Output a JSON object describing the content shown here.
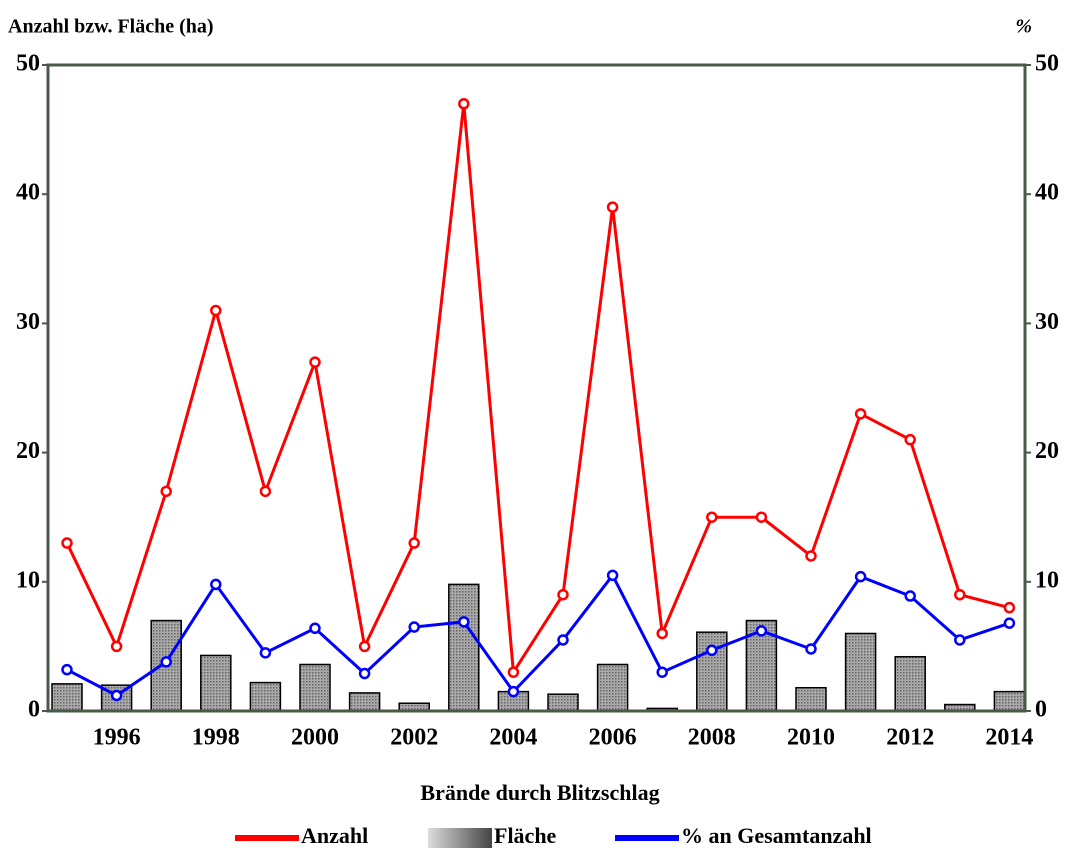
{
  "chart_data": {
    "type": "bar-line",
    "ylabel": "Anzahl bzw. Fläche (ha)",
    "y2label": "%",
    "xlabel": "Brände durch Blitzschlag",
    "categories": [
      null,
      "1996",
      null,
      "1998",
      null,
      "2000",
      null,
      "2002",
      null,
      "2004",
      null,
      "2006",
      null,
      "2008",
      null,
      "2010",
      null,
      "2012",
      null,
      "2014"
    ],
    "series": [
      {
        "name": "Anzahl",
        "type": "line",
        "color": "#ff0000",
        "values": [
          13,
          5,
          17,
          31,
          17,
          27,
          5,
          13,
          47,
          3,
          9,
          39,
          6,
          15,
          15,
          12,
          23,
          21,
          9,
          8
        ]
      },
      {
        "name": "Fläche",
        "type": "bar",
        "color": "#999999",
        "values": [
          2.1,
          2.0,
          7.0,
          4.3,
          2.2,
          3.6,
          1.4,
          0.6,
          9.8,
          1.5,
          1.3,
          3.6,
          0.2,
          6.1,
          7.0,
          1.8,
          6.0,
          4.2,
          0.5,
          1.5
        ]
      },
      {
        "name": "% an Gesamtanzahl",
        "type": "line",
        "axis": "y2",
        "color": "#0000ff",
        "values": [
          3.2,
          1.2,
          3.8,
          9.8,
          4.5,
          6.4,
          2.9,
          6.5,
          6.9,
          1.5,
          5.5,
          10.5,
          3.0,
          4.7,
          6.2,
          4.8,
          10.4,
          8.9,
          5.5,
          6.8
        ]
      }
    ],
    "ylim": [
      0,
      50
    ],
    "yticks": [
      0,
      10,
      20,
      30,
      40,
      50
    ],
    "y2lim": [
      0,
      50
    ],
    "y2ticks": [
      0,
      10,
      20,
      30,
      40,
      50
    ]
  }
}
